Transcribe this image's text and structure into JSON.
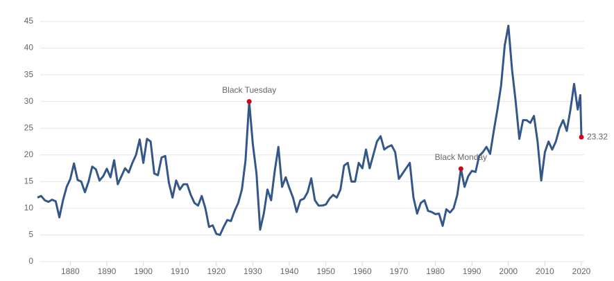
{
  "chart_data": {
    "type": "line",
    "x": [
      1871,
      1872,
      1873,
      1874,
      1875,
      1876,
      1877,
      1878,
      1879,
      1880,
      1881,
      1882,
      1883,
      1884,
      1885,
      1886,
      1887,
      1888,
      1889,
      1890,
      1891,
      1892,
      1893,
      1894,
      1895,
      1896,
      1897,
      1898,
      1899,
      1900,
      1901,
      1902,
      1903,
      1904,
      1905,
      1906,
      1907,
      1908,
      1909,
      1910,
      1911,
      1912,
      1913,
      1914,
      1915,
      1916,
      1917,
      1918,
      1919,
      1920,
      1921,
      1922,
      1923,
      1924,
      1925,
      1926,
      1927,
      1928,
      1929,
      1930,
      1931,
      1932,
      1933,
      1934,
      1935,
      1936,
      1937,
      1938,
      1939,
      1940,
      1941,
      1942,
      1943,
      1944,
      1945,
      1946,
      1947,
      1948,
      1949,
      1950,
      1951,
      1952,
      1953,
      1954,
      1955,
      1956,
      1957,
      1958,
      1959,
      1960,
      1961,
      1962,
      1963,
      1964,
      1965,
      1966,
      1967,
      1968,
      1969,
      1970,
      1971,
      1972,
      1973,
      1974,
      1975,
      1976,
      1977,
      1978,
      1979,
      1980,
      1981,
      1982,
      1983,
      1984,
      1985,
      1986,
      1987,
      1988,
      1989,
      1990,
      1991,
      1992,
      1993,
      1994,
      1995,
      1996,
      1997,
      1998,
      1999,
      2000,
      2001,
      2002,
      2003,
      2004,
      2005,
      2006,
      2007,
      2008,
      2009,
      2010,
      2011,
      2012,
      2013,
      2014,
      2015,
      2016,
      2017,
      2018,
      2019,
      2019.7,
      2020
    ],
    "values": [
      12,
      12.3,
      11.5,
      11.2,
      11.6,
      11.3,
      8.3,
      11.5,
      14,
      15.5,
      18.4,
      15.3,
      15,
      13,
      15,
      17.8,
      17.3,
      15.2,
      16,
      17.4,
      15.8,
      19,
      14.5,
      16,
      17.5,
      16.7,
      18.5,
      20,
      22.9,
      18.5,
      23,
      22.5,
      16.5,
      16.2,
      19.5,
      19.8,
      14.8,
      12,
      15.2,
      13.5,
      14.5,
      14.5,
      12.5,
      11,
      10.5,
      12.3,
      10,
      6.5,
      6.8,
      5.2,
      5,
      6.5,
      7.8,
      7.6,
      9.5,
      11,
      13.5,
      19,
      30,
      22,
      16.5,
      6,
      9,
      13.5,
      11.5,
      17,
      21.5,
      14,
      15.8,
      13.8,
      12,
      9.3,
      11.5,
      11.8,
      13,
      15.6,
      11.5,
      10.5,
      10.5,
      10.7,
      11.8,
      12.5,
      12,
      13.5,
      18,
      18.5,
      15,
      15,
      18.5,
      17.5,
      21,
      17.5,
      20,
      22.5,
      23.5,
      21,
      21.5,
      21.8,
      20.5,
      15.5,
      16.5,
      17.5,
      18.5,
      12,
      9,
      11,
      11.5,
      9.5,
      9.3,
      8.9,
      9,
      6.7,
      9.8,
      9.2,
      10,
      12.5,
      17.4,
      14,
      16,
      17,
      16.8,
      19.8,
      20.5,
      21.5,
      20.2,
      24.5,
      28.5,
      33,
      40.5,
      44.2,
      36,
      30,
      23,
      26.5,
      26.5,
      26,
      27.3,
      22.5,
      15.2,
      20.5,
      22.5,
      21,
      22.5,
      25,
      26.5,
      24.5,
      28.5,
      33.3,
      28.5,
      31.2,
      23.32
    ],
    "color": "#34578a",
    "xlim": [
      1871,
      2020
    ],
    "xticks": [
      1880,
      1890,
      1900,
      1910,
      1920,
      1930,
      1940,
      1950,
      1960,
      1970,
      1980,
      1990,
      2000,
      2010,
      2020
    ],
    "ylim": [
      0,
      45
    ],
    "yticks": [
      0,
      5,
      10,
      15,
      20,
      25,
      30,
      35,
      40,
      45
    ],
    "grid": true,
    "annotations": [
      {
        "label": "Black Tuesday",
        "x": 1929,
        "y": 30
      },
      {
        "label": "Black Monday",
        "x": 1987,
        "y": 17.4
      },
      {
        "label": "23.32",
        "x": 2020,
        "y": 23.32
      }
    ],
    "annotation_color": "#d0021b"
  }
}
